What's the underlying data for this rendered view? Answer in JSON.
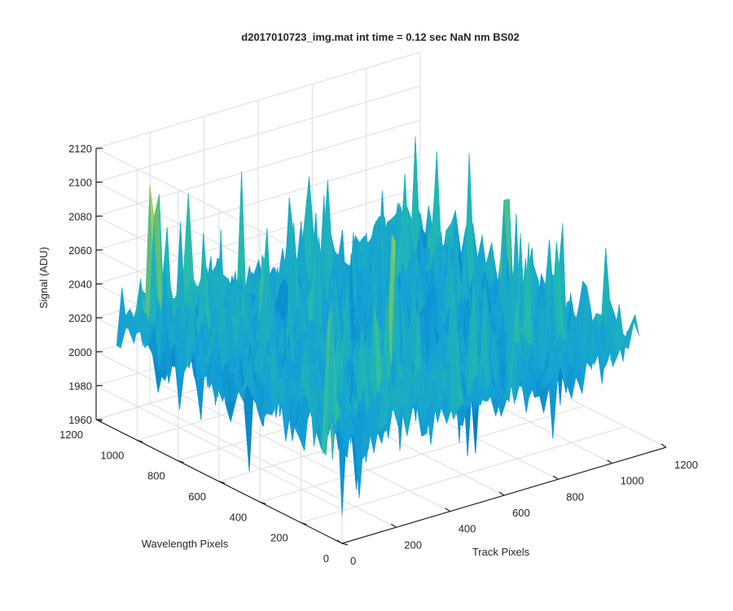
{
  "chart_data": {
    "type": "surface",
    "title": "d2017010723_img.mat int time = 0.12 sec  NaN nm BS02",
    "xlabel": "Track Pixels",
    "ylabel": "Wavelength Pixels",
    "zlabel": "Signal (ADU)",
    "xlim": [
      0,
      1200
    ],
    "ylim": [
      0,
      1200
    ],
    "zlim": [
      1960,
      2120
    ],
    "xticks": [
      0,
      200,
      400,
      600,
      800,
      1000,
      1200
    ],
    "yticks": [
      0,
      200,
      400,
      600,
      800,
      1000,
      1200
    ],
    "zticks": [
      1960,
      1980,
      2000,
      2020,
      2040,
      2060,
      2080,
      2100,
      2120
    ],
    "grid": true,
    "colormap": "parula",
    "surface_stats": {
      "x_range": [
        0,
        1100
      ],
      "y_range": [
        0,
        1100
      ],
      "baseline_signal": 2020,
      "noise_min": 1965,
      "noise_max": 2115
    },
    "colors": {
      "low": "#0072BD",
      "mid": "#21B6C7",
      "high": "#E8D54A"
    }
  }
}
